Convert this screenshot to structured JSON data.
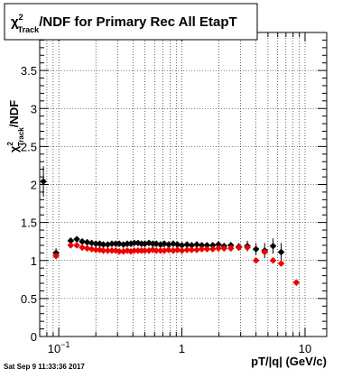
{
  "footer": {
    "timestamp": "Sat Sep  9 11:33:36 2017"
  },
  "chart_data": {
    "type": "scatter",
    "title": "χ²_Track/NDF for Primary Rec All EtapT",
    "title_parts": {
      "chi": "χ",
      "sup": "2",
      "sub": "Track",
      "rest": "/NDF for Primary Rec All EtapT"
    },
    "xlabel": "pT/|q| (GeV/c)",
    "ylabel": "χ²_Track/NDF",
    "ylabel_parts": {
      "chi": "χ",
      "sup": "2",
      "sub": "Track",
      "rest": "/NDF"
    },
    "xscale": "log",
    "xlim": [
      0.07,
      15
    ],
    "ylim": [
      0,
      4
    ],
    "grid": true,
    "legend": "none",
    "x_ticks": [
      {
        "value": 0.1,
        "base": "10",
        "exp": "−1"
      },
      {
        "value": 1,
        "base": "1",
        "exp": ""
      },
      {
        "value": 10,
        "base": "10",
        "exp": ""
      }
    ],
    "y_ticks": [
      {
        "value": 0,
        "label": "0"
      },
      {
        "value": 0.5,
        "label": "0.5"
      },
      {
        "value": 1,
        "label": "1"
      },
      {
        "value": 1.5,
        "label": "1.5"
      },
      {
        "value": 2,
        "label": "2"
      },
      {
        "value": 2.5,
        "label": "2.5"
      },
      {
        "value": 3,
        "label": "3"
      },
      {
        "value": 3.5,
        "label": "3.5"
      }
    ],
    "series": [
      {
        "color": "#000000",
        "x": [
          0.075,
          0.095,
          0.125,
          0.14,
          0.155,
          0.17,
          0.185,
          0.2,
          0.215,
          0.23,
          0.25,
          0.27,
          0.29,
          0.31,
          0.335,
          0.36,
          0.385,
          0.41,
          0.44,
          0.47,
          0.5,
          0.54,
          0.58,
          0.62,
          0.67,
          0.72,
          0.78,
          0.85,
          0.92,
          1.0,
          1.1,
          1.2,
          1.32,
          1.45,
          1.6,
          1.78,
          1.98,
          2.2,
          2.5,
          2.9,
          3.4,
          4.0,
          4.7,
          5.5,
          6.4
        ],
        "y": [
          2.04,
          1.1,
          1.26,
          1.28,
          1.25,
          1.24,
          1.23,
          1.22,
          1.22,
          1.21,
          1.21,
          1.22,
          1.22,
          1.22,
          1.21,
          1.22,
          1.22,
          1.23,
          1.23,
          1.22,
          1.22,
          1.23,
          1.22,
          1.22,
          1.21,
          1.22,
          1.21,
          1.22,
          1.21,
          1.2,
          1.21,
          1.2,
          1.21,
          1.2,
          1.2,
          1.2,
          1.21,
          1.19,
          1.2,
          1.18,
          1.19,
          1.15,
          1.13,
          1.19,
          1.11
        ],
        "err": [
          0.2,
          0.06,
          0.02,
          0.02,
          0.02,
          0.02,
          0.02,
          0.01,
          0.01,
          0.01,
          0.01,
          0.01,
          0.01,
          0.01,
          0.01,
          0.01,
          0.01,
          0.01,
          0.01,
          0.01,
          0.01,
          0.01,
          0.01,
          0.01,
          0.01,
          0.01,
          0.01,
          0.01,
          0.01,
          0.01,
          0.01,
          0.01,
          0.01,
          0.02,
          0.02,
          0.02,
          0.02,
          0.03,
          0.04,
          0.05,
          0.07,
          0.08,
          0.1,
          0.1,
          0.12
        ]
      },
      {
        "color": "#ee0000",
        "x": [
          0.095,
          0.125,
          0.14,
          0.155,
          0.17,
          0.185,
          0.2,
          0.215,
          0.23,
          0.25,
          0.27,
          0.29,
          0.31,
          0.335,
          0.36,
          0.385,
          0.41,
          0.44,
          0.47,
          0.5,
          0.54,
          0.58,
          0.62,
          0.67,
          0.72,
          0.78,
          0.85,
          0.92,
          1.0,
          1.1,
          1.2,
          1.32,
          1.45,
          1.6,
          1.78,
          1.98,
          2.2,
          2.5,
          2.9,
          3.4,
          4.0,
          4.7,
          5.5,
          6.4,
          8.5
        ],
        "y": [
          1.06,
          1.2,
          1.2,
          1.17,
          1.16,
          1.15,
          1.14,
          1.14,
          1.13,
          1.13,
          1.13,
          1.13,
          1.12,
          1.12,
          1.13,
          1.12,
          1.13,
          1.13,
          1.13,
          1.13,
          1.13,
          1.14,
          1.13,
          1.13,
          1.13,
          1.14,
          1.13,
          1.14,
          1.13,
          1.14,
          1.14,
          1.14,
          1.15,
          1.15,
          1.15,
          1.16,
          1.16,
          1.16,
          1.17,
          1.17,
          1.0,
          1.11,
          1.0,
          0.96,
          0.71
        ]
      }
    ]
  }
}
